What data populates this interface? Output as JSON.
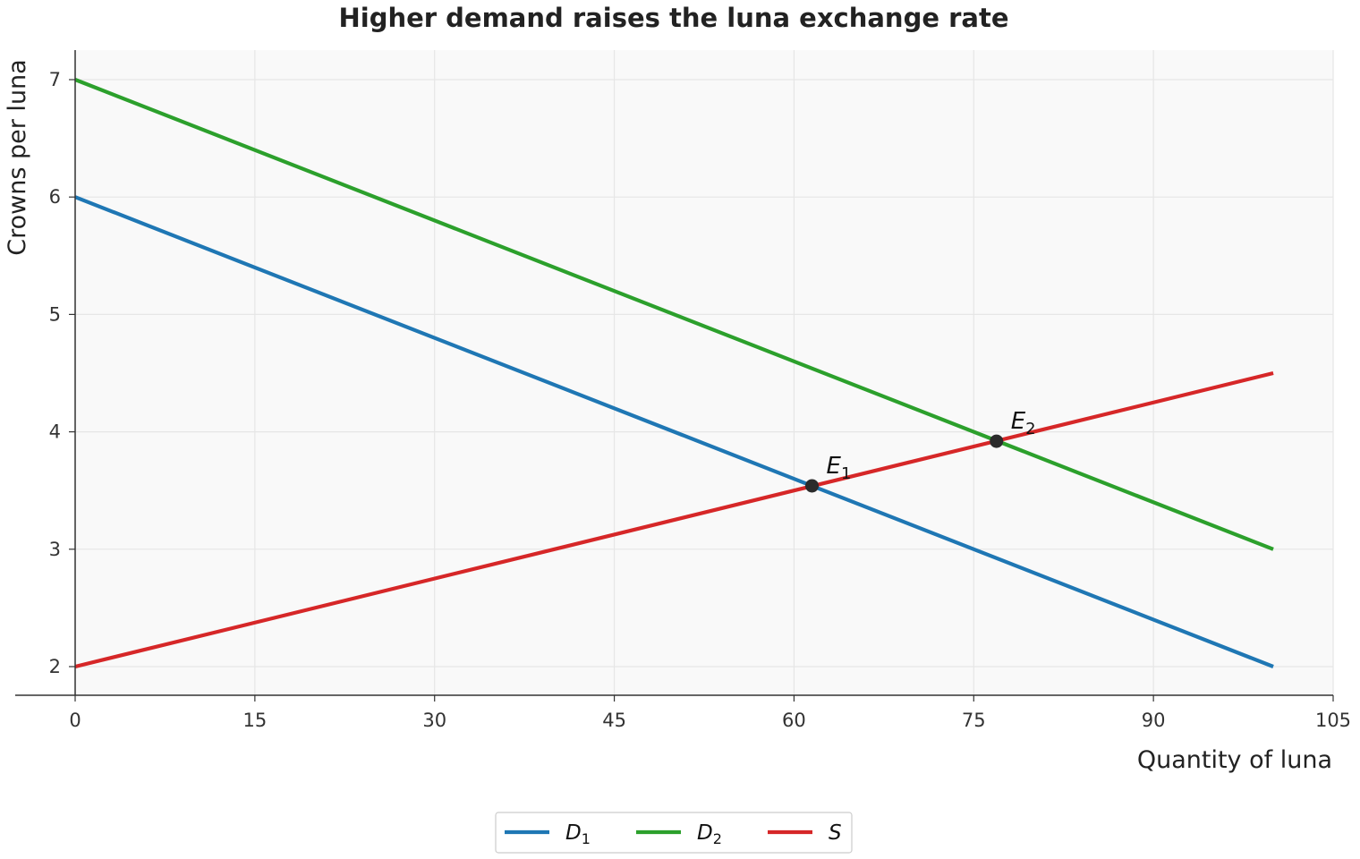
{
  "chart_data": {
    "type": "line",
    "title": "Higher demand raises the luna exchange rate",
    "xlabel": "Quantity of luna",
    "ylabel": "Crowns per luna",
    "xlim": [
      -8,
      105
    ],
    "ylim": [
      1.75,
      7.25
    ],
    "xticks": [
      0,
      15,
      30,
      45,
      60,
      75,
      90,
      105
    ],
    "yticks": [
      2,
      3,
      4,
      5,
      6,
      7
    ],
    "grid": true,
    "series": [
      {
        "name": "D",
        "sub": "1",
        "color": "#1f77b4",
        "x": [
          0,
          100
        ],
        "y": [
          6,
          2
        ]
      },
      {
        "name": "D",
        "sub": "2",
        "color": "#2ca02c",
        "x": [
          0,
          100
        ],
        "y": [
          7,
          3
        ]
      },
      {
        "name": "S",
        "sub": "",
        "color": "#d62728",
        "x": [
          0,
          100
        ],
        "y": [
          2,
          4.5
        ]
      }
    ],
    "points": [
      {
        "label": "E",
        "sub": "1",
        "x": 61.5,
        "y": 3.54
      },
      {
        "label": "E",
        "sub": "2",
        "x": 76.9,
        "y": 3.92
      }
    ],
    "legend_position": "bottom-center"
  }
}
